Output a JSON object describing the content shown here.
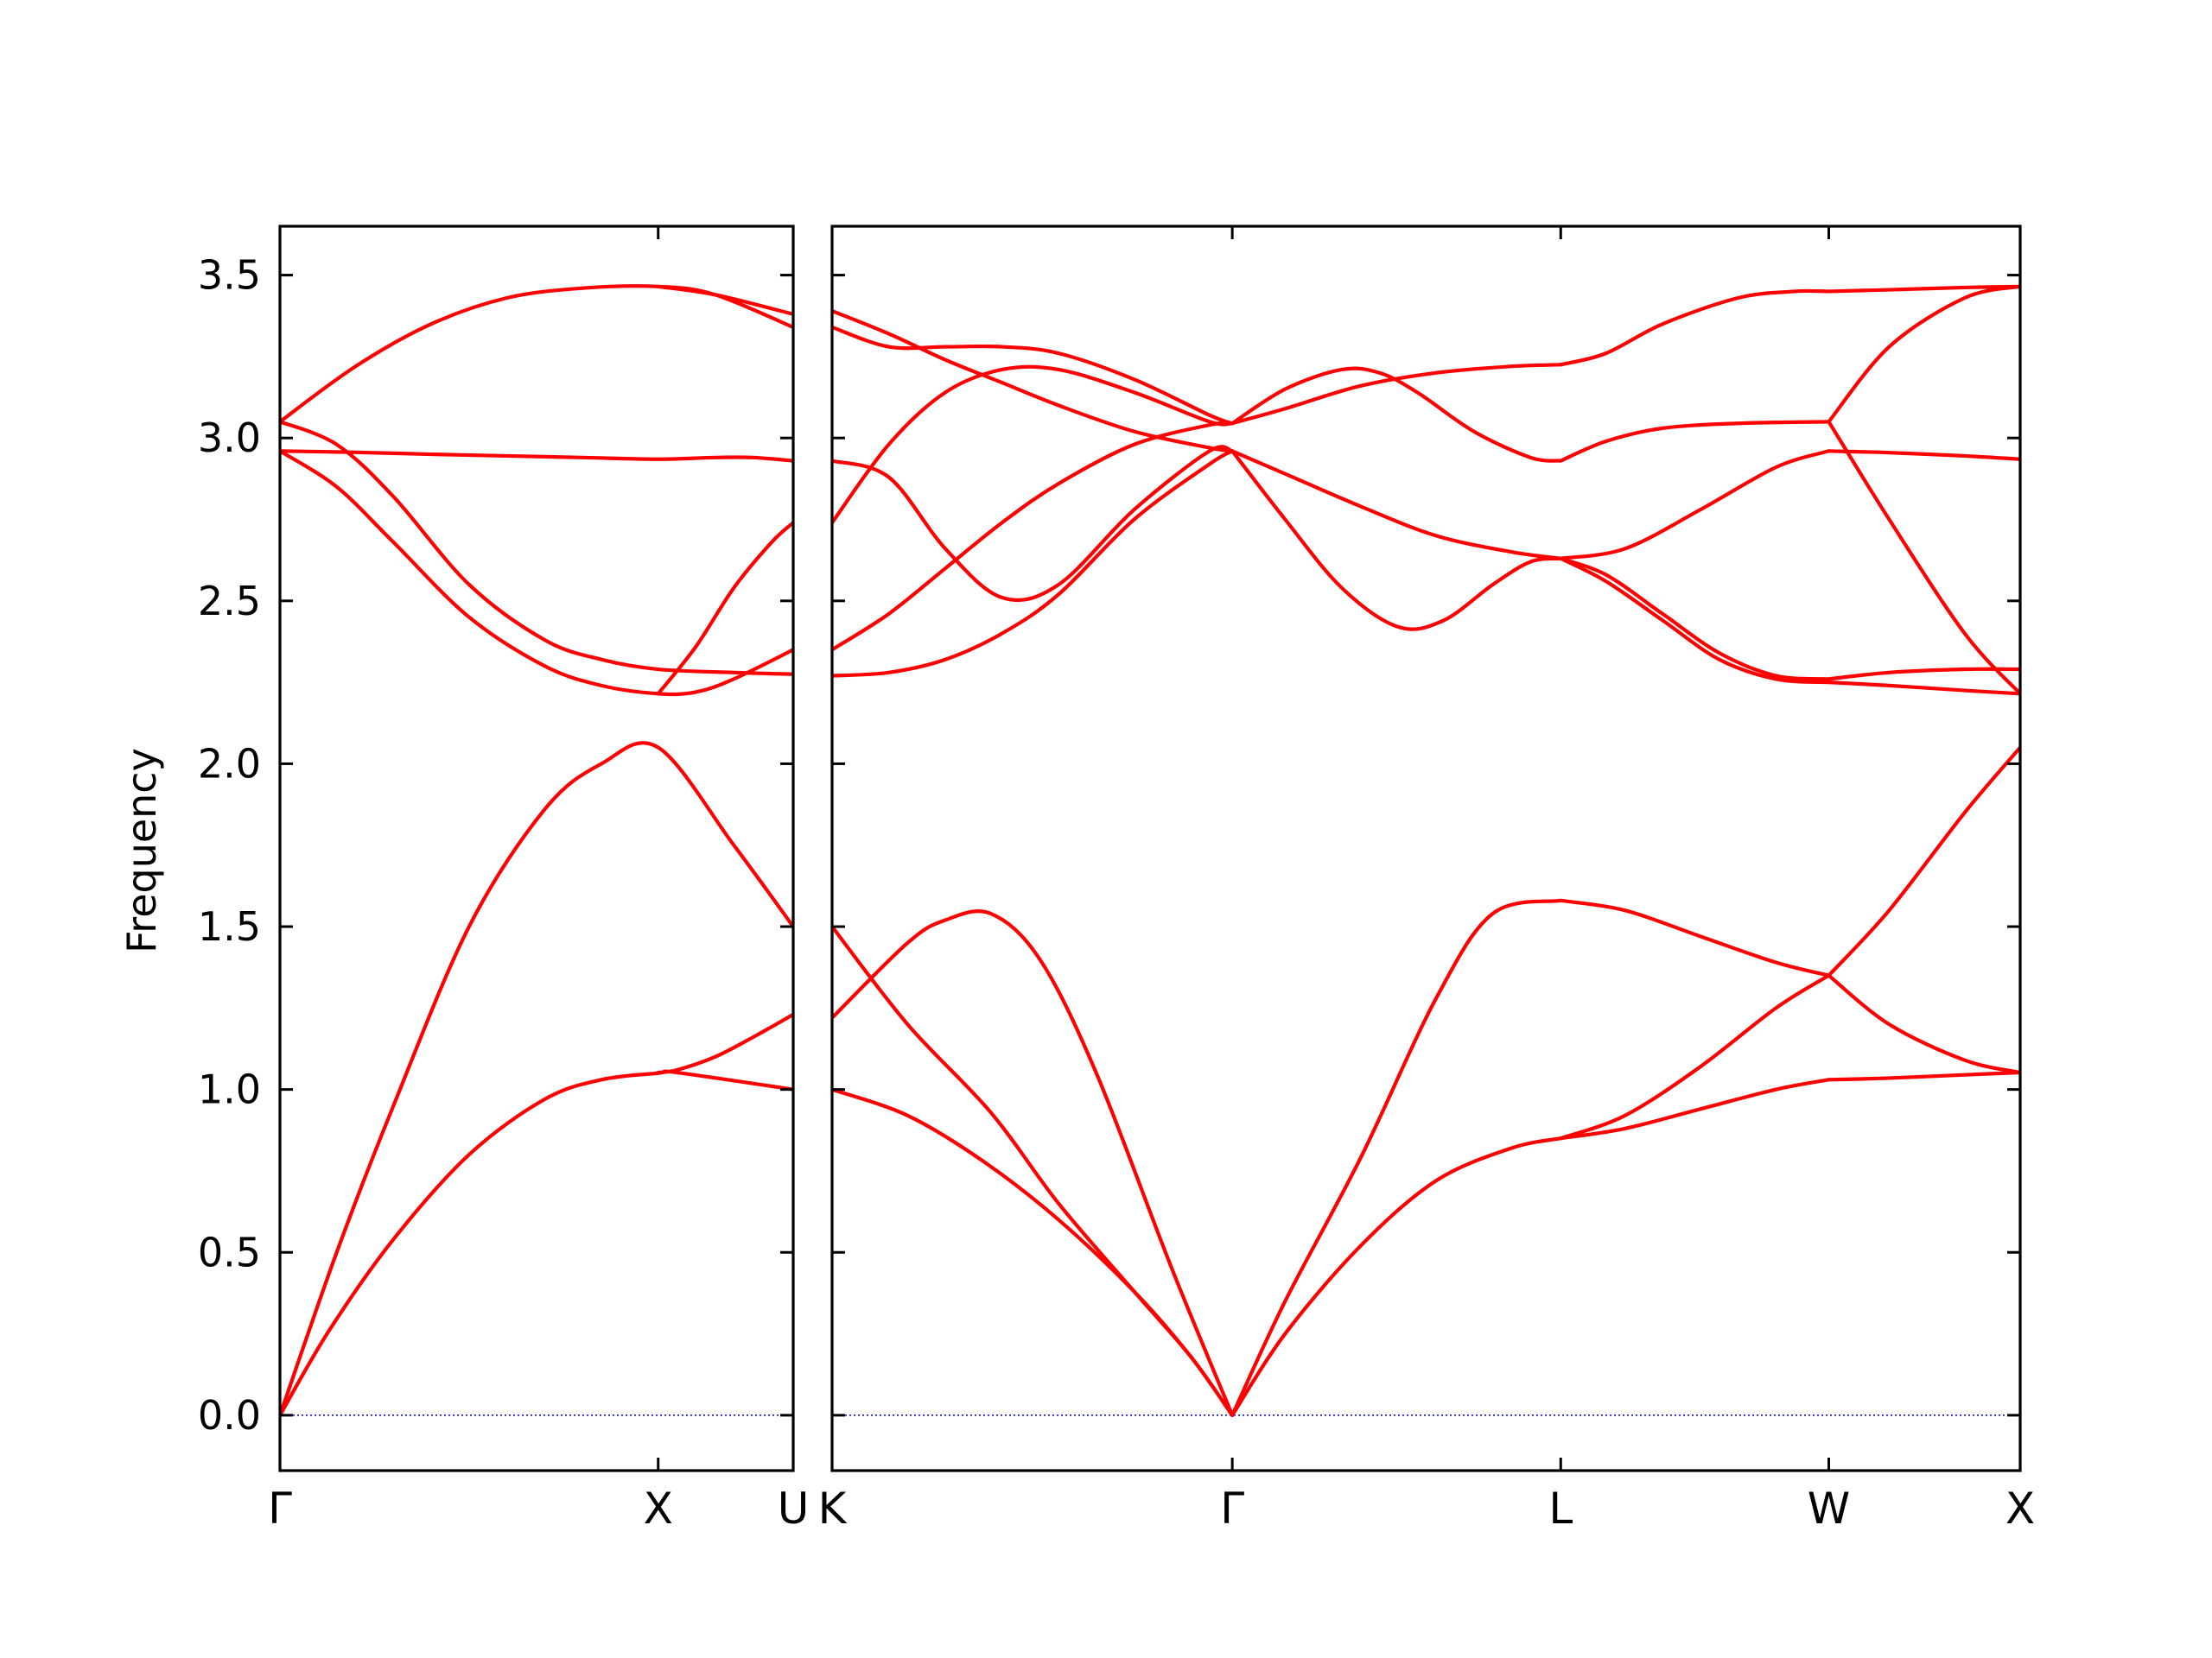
{
  "chart_data": {
    "type": "line",
    "title": "",
    "ylabel": "Frequency",
    "ylim": [
      -0.17,
      3.65
    ],
    "yticks": [
      0.0,
      0.5,
      1.0,
      1.5,
      2.0,
      2.5,
      3.0,
      3.5
    ],
    "ytick_labels": [
      "0.0",
      "0.5",
      "1.0",
      "1.5",
      "2.0",
      "2.5",
      "3.0",
      "3.5"
    ],
    "grid": false,
    "legend": "none",
    "colors": {
      "bands": "#ff0000",
      "zero_line": "#0000cc",
      "frame": "#000000"
    },
    "panels": [
      {
        "name": "left",
        "x_range": [
          0,
          1.357
        ],
        "xticks": [
          {
            "x": 0,
            "label": "Γ"
          },
          {
            "x": 1.0,
            "label": "X"
          },
          {
            "x": 1.357,
            "label": "U"
          }
        ],
        "bands": [
          {
            "x": [
              0,
              0.13,
              0.3,
              0.5,
              0.7,
              0.85,
              1.0,
              1.05,
              1.357
            ],
            "y": [
              0.0,
              0.26,
              0.54,
              0.8,
              0.97,
              1.03,
              1.05,
              1.052,
              1.0
            ]
          },
          {
            "x": [
              0,
              0.15,
              0.3,
              0.5,
              0.7,
              0.85,
              1.0,
              1.2,
              1.357
            ],
            "y": [
              0.0,
              0.5,
              0.95,
              1.5,
              1.86,
              2.0,
              2.05,
              1.75,
              1.5
            ]
          },
          {
            "x": [
              0,
              0.15,
              0.3,
              0.5,
              0.7,
              0.85,
              1.0,
              1.1,
              1.2,
              1.357
            ],
            "y": [
              2.96,
              2.85,
              2.68,
              2.45,
              2.3,
              2.24,
              2.215,
              2.22,
              2.26,
              2.35
            ]
          },
          {
            "x": [
              0,
              0.15,
              0.3,
              0.5,
              0.7,
              0.85,
              1.0,
              1.2,
              1.357
            ],
            "y": [
              3.05,
              2.98,
              2.82,
              2.55,
              2.38,
              2.32,
              2.29,
              2.28,
              2.275
            ]
          },
          {
            "x": [
              0,
              0.2,
              0.4,
              0.6,
              0.8,
              1.0,
              1.15,
              1.25,
              1.357
            ],
            "y": [
              2.96,
              2.956,
              2.95,
              2.945,
              2.94,
              2.935,
              2.94,
              2.94,
              2.93
            ]
          },
          {
            "x": [
              0,
              0.2,
              0.4,
              0.6,
              0.8,
              1.0,
              1.15,
              1.357
            ],
            "y": [
              3.05,
              3.22,
              3.35,
              3.43,
              3.46,
              3.465,
              3.44,
              3.34
            ]
          },
          {
            "x": [
              1.0,
              1.1,
              1.2,
              1.3,
              1.357
            ],
            "y": [
              2.215,
              2.36,
              2.54,
              2.68,
              2.74
            ]
          },
          {
            "x": [
              1.0,
              1.05,
              1.15,
              1.25,
              1.357
            ],
            "y": [
              1.052,
              1.06,
              1.1,
              1.16,
              1.23
            ]
          },
          {
            "x": [
              1.0,
              1.15,
              1.357
            ],
            "y": [
              3.465,
              3.44,
              3.38
            ]
          }
        ]
      },
      {
        "name": "right",
        "x_range": [
          0,
          3.147
        ],
        "xticks": [
          {
            "x": 0,
            "label": "K"
          },
          {
            "x": 1.06,
            "label": "Γ"
          },
          {
            "x": 1.93,
            "label": "L"
          },
          {
            "x": 2.64,
            "label": "W"
          },
          {
            "x": 3.147,
            "label": "X"
          }
        ],
        "bands": [
          {
            "x": [
              0,
              0.2,
              0.4,
              0.6,
              0.8,
              0.95,
              1.06
            ],
            "y": [
              1.0,
              0.92,
              0.78,
              0.6,
              0.38,
              0.18,
              0.0
            ]
          },
          {
            "x": [
              0,
              0.2,
              0.42,
              0.6,
              0.8,
              0.95,
              1.06
            ],
            "y": [
              1.5,
              1.2,
              0.93,
              0.65,
              0.38,
              0.18,
              0.0
            ]
          },
          {
            "x": [
              0,
              0.2,
              0.3,
              0.42,
              0.55,
              0.7,
              0.9,
              1.06
            ],
            "y": [
              1.22,
              1.45,
              1.52,
              1.54,
              1.4,
              1.05,
              0.45,
              0.0
            ]
          },
          {
            "x": [
              0,
              0.15,
              0.3,
              0.45,
              0.6,
              0.8,
              1.0,
              1.06
            ],
            "y": [
              2.27,
              2.28,
              2.32,
              2.4,
              2.52,
              2.75,
              2.92,
              2.96
            ]
          },
          {
            "x": [
              0,
              0.15,
              0.3,
              0.45,
              0.6,
              0.8,
              1.0,
              1.06
            ],
            "y": [
              2.35,
              2.46,
              2.6,
              2.74,
              2.86,
              2.98,
              3.04,
              3.045
            ]
          },
          {
            "x": [
              0,
              0.15,
              0.3,
              0.45,
              0.6,
              0.8,
              1.0,
              1.06
            ],
            "y": [
              2.93,
              2.88,
              2.66,
              2.51,
              2.55,
              2.78,
              2.96,
              2.96
            ]
          },
          {
            "x": [
              0,
              0.15,
              0.3,
              0.45,
              0.6,
              0.8,
              1.0,
              1.06
            ],
            "y": [
              2.74,
              2.98,
              3.14,
              3.21,
              3.21,
              3.14,
              3.05,
              3.045
            ]
          },
          {
            "x": [
              0,
              0.15,
              0.3,
              0.45,
              0.6,
              0.8,
              1.0,
              1.06
            ],
            "y": [
              3.34,
              3.28,
              3.28,
              3.28,
              3.26,
              3.18,
              3.07,
              3.045
            ]
          },
          {
            "x": [
              0,
              0.15,
              0.3,
              0.45,
              0.6,
              0.8,
              1.0,
              1.06
            ],
            "y": [
              3.39,
              3.32,
              3.24,
              3.17,
              3.1,
              3.02,
              2.97,
              2.96
            ]
          },
          {
            "x": [
              1.06,
              1.2,
              1.4,
              1.6,
              1.75,
              1.93
            ],
            "y": [
              0.0,
              0.35,
              0.79,
              1.28,
              1.54,
              1.58
            ]
          },
          {
            "x": [
              1.06,
              1.2,
              1.4,
              1.6,
              1.8,
              1.93
            ],
            "y": [
              0.0,
              0.25,
              0.52,
              0.72,
              0.82,
              0.85
            ]
          },
          {
            "x": [
              1.06,
              1.2,
              1.35,
              1.5,
              1.62,
              1.75,
              1.85,
              1.93
            ],
            "y": [
              2.96,
              2.75,
              2.54,
              2.42,
              2.44,
              2.55,
              2.62,
              2.63
            ]
          },
          {
            "x": [
              1.06,
              1.2,
              1.4,
              1.6,
              1.8,
              1.93
            ],
            "y": [
              2.96,
              2.89,
              2.79,
              2.7,
              2.65,
              2.63
            ]
          },
          {
            "x": [
              1.06,
              1.2,
              1.35,
              1.45,
              1.55,
              1.7,
              1.85,
              1.93
            ],
            "y": [
              3.045,
              3.15,
              3.21,
              3.2,
              3.14,
              3.02,
              2.94,
              2.93
            ]
          },
          {
            "x": [
              1.06,
              1.2,
              1.4,
              1.6,
              1.8,
              1.93
            ],
            "y": [
              3.045,
              3.09,
              3.16,
              3.2,
              3.22,
              3.225
            ]
          },
          {
            "x": [
              1.93,
              2.1,
              2.3,
              2.5,
              2.64
            ],
            "y": [
              1.58,
              1.55,
              1.47,
              1.39,
              1.35
            ]
          },
          {
            "x": [
              1.93,
              2.1,
              2.3,
              2.5,
              2.64
            ],
            "y": [
              0.85,
              0.92,
              1.07,
              1.25,
              1.35
            ]
          },
          {
            "x": [
              1.93,
              2.1,
              2.3,
              2.5,
              2.64
            ],
            "y": [
              0.85,
              0.88,
              0.94,
              1.0,
              1.03
            ]
          },
          {
            "x": [
              1.93,
              2.05,
              2.2,
              2.35,
              2.5,
              2.64
            ],
            "y": [
              2.63,
              2.58,
              2.46,
              2.34,
              2.27,
              2.26
            ]
          },
          {
            "x": [
              1.93,
              2.05,
              2.2,
              2.35,
              2.5,
              2.64
            ],
            "y": [
              2.63,
              2.56,
              2.44,
              2.32,
              2.26,
              2.25
            ]
          },
          {
            "x": [
              1.93,
              2.1,
              2.3,
              2.5,
              2.64
            ],
            "y": [
              2.63,
              2.66,
              2.78,
              2.91,
              2.96
            ]
          },
          {
            "x": [
              1.93,
              2.05,
              2.2,
              2.4,
              2.64
            ],
            "y": [
              2.93,
              2.99,
              3.03,
              3.045,
              3.05
            ]
          },
          {
            "x": [
              1.93,
              2.05,
              2.2,
              2.4,
              2.55,
              2.64
            ],
            "y": [
              3.225,
              3.26,
              3.35,
              3.43,
              3.45,
              3.45
            ]
          },
          {
            "x": [
              2.64,
              2.8,
              3.0,
              3.147
            ],
            "y": [
              1.35,
              1.55,
              1.85,
              2.05
            ]
          },
          {
            "x": [
              2.64,
              2.8,
              3.0,
              3.147
            ],
            "y": [
              1.35,
              1.2,
              1.09,
              1.052
            ]
          },
          {
            "x": [
              2.64,
              2.8,
              3.0,
              3.147
            ],
            "y": [
              1.03,
              1.035,
              1.045,
              1.052
            ]
          },
          {
            "x": [
              2.64,
              2.8,
              3.0,
              3.147
            ],
            "y": [
              2.25,
              2.24,
              2.225,
              2.215
            ]
          },
          {
            "x": [
              2.64,
              2.8,
              3.0,
              3.147
            ],
            "y": [
              2.26,
              2.28,
              2.29,
              2.29
            ]
          },
          {
            "x": [
              2.64,
              2.8,
              3.0,
              3.147
            ],
            "y": [
              3.05,
              2.75,
              2.4,
              2.215
            ]
          },
          {
            "x": [
              2.64,
              2.8,
              3.0,
              3.147
            ],
            "y": [
              2.96,
              2.955,
              2.945,
              2.935
            ]
          },
          {
            "x": [
              2.64,
              2.8,
              3.0,
              3.147
            ],
            "y": [
              3.05,
              3.28,
              3.43,
              3.465
            ]
          },
          {
            "x": [
              2.64,
              2.8,
              3.0,
              3.147
            ],
            "y": [
              3.45,
              3.455,
              3.462,
              3.465
            ]
          }
        ]
      }
    ]
  }
}
